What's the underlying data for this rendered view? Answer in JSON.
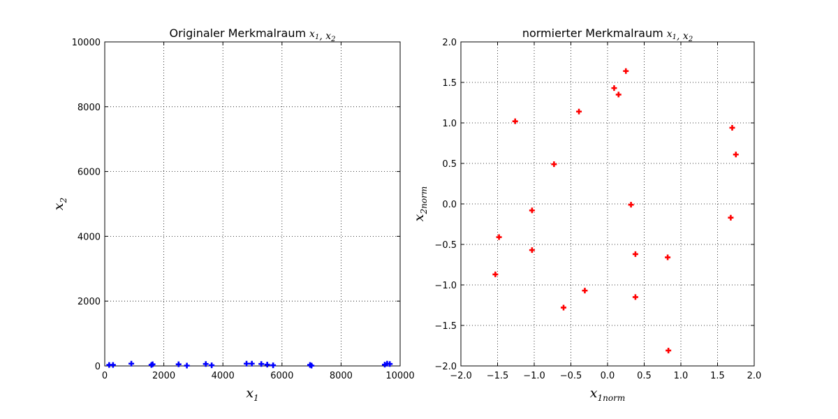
{
  "chart_data": [
    {
      "type": "scatter",
      "title_text": "Originaler Merkmalraum",
      "title_math": "x1, x2",
      "xlabel": "x1",
      "ylabel": "x2",
      "xlim": [
        0,
        10000
      ],
      "ylim": [
        0,
        10000
      ],
      "xticks": [
        0,
        2000,
        4000,
        6000,
        8000,
        10000
      ],
      "yticks": [
        0,
        2000,
        4000,
        6000,
        8000,
        10000
      ],
      "grid": true,
      "marker": "plus",
      "color": "#0000ff",
      "series": [
        {
          "x": [
            150,
            280,
            900,
            1580,
            1620,
            2500,
            2780,
            3420,
            3620,
            4800,
            4980,
            5300,
            5500,
            5700,
            6950,
            7000,
            9480,
            9560,
            9650
          ],
          "y": [
            30,
            30,
            70,
            30,
            50,
            50,
            10,
            60,
            20,
            70,
            70,
            60,
            40,
            20,
            30,
            10,
            40,
            70,
            60
          ]
        }
      ]
    },
    {
      "type": "scatter",
      "title_text": "normierter Merkmalraum",
      "title_math": "x1, x2",
      "xlabel": "x1norm",
      "ylabel": "x2norm",
      "xlim": [
        -2.0,
        2.0
      ],
      "ylim": [
        -2.0,
        2.0
      ],
      "xticks": [
        "−2.0",
        "−1.5",
        "−1.0",
        "−0.5",
        "0.0",
        "0.5",
        "1.0",
        "1.5",
        "2.0"
      ],
      "yticks": [
        "−2.0",
        "−1.5",
        "−1.0",
        "−0.5",
        "0.0",
        "0.5",
        "1.0",
        "1.5",
        "2.0"
      ],
      "grid": true,
      "marker": "plus",
      "color": "#ff0000",
      "series": [
        {
          "x": [
            0.25,
            0.09,
            0.15,
            -0.39,
            -1.26,
            1.7,
            1.75,
            -0.73,
            0.32,
            -1.03,
            1.68,
            -1.48,
            -1.03,
            0.38,
            0.82,
            -1.53,
            -0.31,
            0.38,
            -0.6,
            0.83
          ],
          "y": [
            1.64,
            1.43,
            1.35,
            1.14,
            1.02,
            0.94,
            0.61,
            0.49,
            -0.01,
            -0.08,
            -0.17,
            -0.41,
            -0.57,
            -0.62,
            -0.66,
            -0.87,
            -1.07,
            -1.15,
            -1.28,
            -1.81
          ]
        }
      ]
    }
  ]
}
